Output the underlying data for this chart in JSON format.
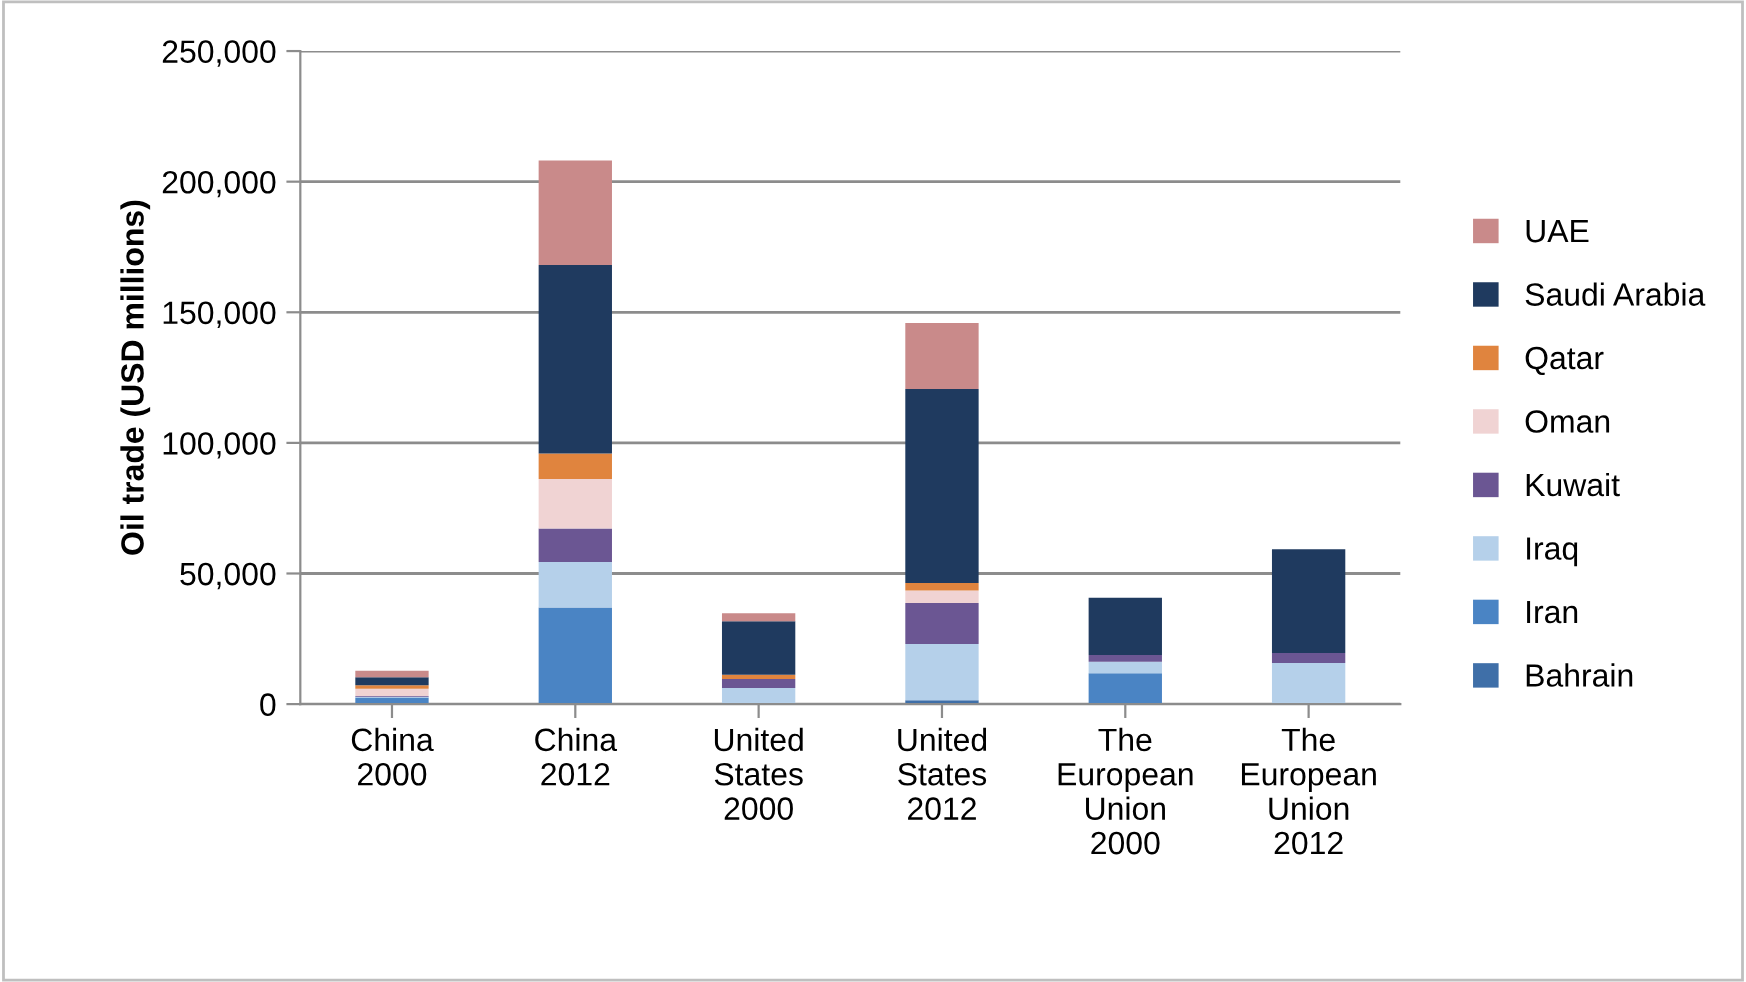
{
  "chart_data": {
    "type": "bar",
    "stacked": true,
    "ylabel": "Oil trade (USD millions)",
    "categories": [
      "China\n2000",
      "China\n2012",
      "United\nStates\n2000",
      "United\nStates\n2012",
      "The\nEuropean\nUnion\n2000",
      "The\nEuropean\nUnion\n2012"
    ],
    "series": [
      {
        "name": "Bahrain",
        "color": "#3f6fa8",
        "values": [
          0,
          null,
          null,
          1500,
          0,
          0
        ]
      },
      {
        "name": "Iran",
        "color": "#4a84c4",
        "values": [
          2500,
          37000,
          300,
          0,
          11800,
          0
        ]
      },
      {
        "name": "Iraq",
        "color": "#b5d0ea",
        "values": [
          300,
          17400,
          5900,
          21500,
          4400,
          15700
        ]
      },
      {
        "name": "Kuwait",
        "color": "#6b5693",
        "values": [
          300,
          12800,
          3400,
          15700,
          2600,
          3900
        ]
      },
      {
        "name": "Oman",
        "color": "#f0d3d3",
        "values": [
          2800,
          19000,
          0,
          4800,
          0,
          0
        ]
      },
      {
        "name": "Qatar",
        "color": "#e0843e",
        "values": [
          1300,
          9700,
          1600,
          2900,
          0,
          0
        ]
      },
      {
        "name": "Saudi Arabia",
        "color": "#1f3a5f",
        "values": [
          3100,
          72200,
          20500,
          74200,
          21900,
          39700
        ]
      },
      {
        "name": "UAE",
        "color": "#c98a8a",
        "values": [
          2500,
          40000,
          3100,
          25300,
          0,
          0
        ]
      }
    ],
    "ylim": [
      0,
      250000
    ],
    "yticks": [
      {
        "value": 0,
        "label": "0"
      },
      {
        "value": 50000,
        "label": "50,000"
      },
      {
        "value": 100000,
        "label": "100,000"
      },
      {
        "value": 150000,
        "label": "150,000"
      },
      {
        "value": 200000,
        "label": "200,000"
      },
      {
        "value": 250000,
        "label": "250,000"
      }
    ],
    "grid": "y",
    "legend": "right"
  }
}
